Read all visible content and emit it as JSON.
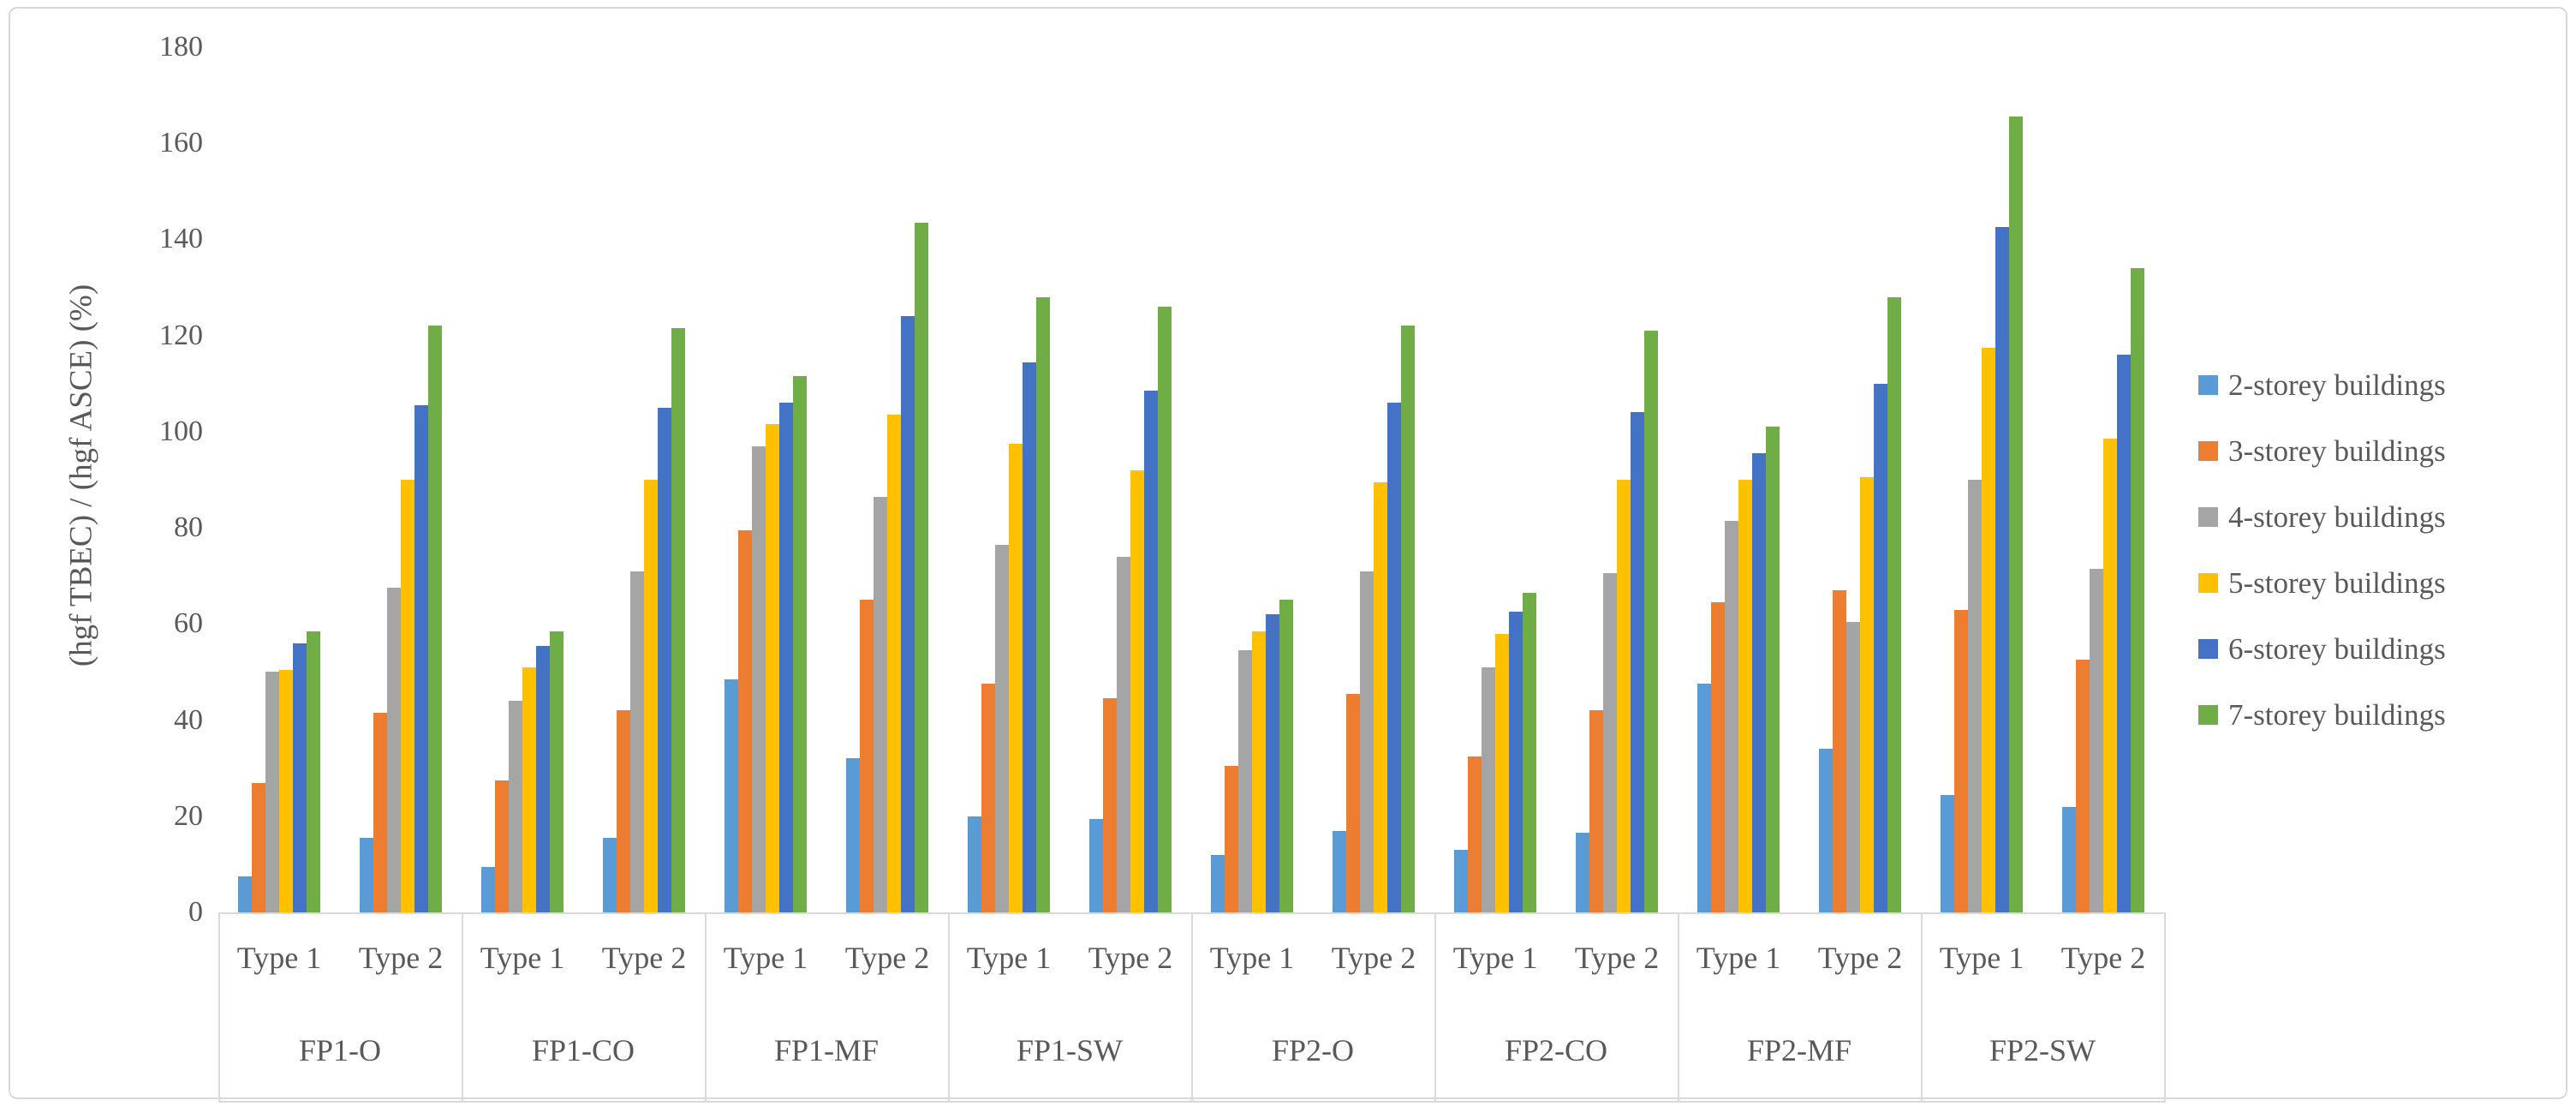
{
  "chart_data": {
    "type": "bar",
    "title": "",
    "ylabel": "(hgf TBEC) / (hgf ASCE) (%)",
    "xlabel": "",
    "ylim": [
      0,
      180
    ],
    "yticks": [
      0,
      20,
      40,
      60,
      80,
      100,
      120,
      140,
      160,
      180
    ],
    "grid": false,
    "legend_position": "right",
    "groups": [
      "FP1-O",
      "FP1-CO",
      "FP1-MF",
      "FP1-SW",
      "FP2-O",
      "FP2-CO",
      "FP2-MF",
      "FP2-SW"
    ],
    "subgroups": [
      "Type 1",
      "Type 2"
    ],
    "series": [
      {
        "name": "2-storey buildings",
        "color": "#5B9BD5",
        "values": [
          [
            7.5,
            15.5
          ],
          [
            9.5,
            15.5
          ],
          [
            48.5,
            32
          ],
          [
            20,
            19.5
          ],
          [
            12,
            17
          ],
          [
            13,
            16.5
          ],
          [
            47.5,
            34
          ],
          [
            24.5,
            22
          ]
        ]
      },
      {
        "name": "3-storey buildings",
        "color": "#ED7D31",
        "values": [
          [
            27,
            41.5
          ],
          [
            27.5,
            42
          ],
          [
            79.5,
            65
          ],
          [
            47.5,
            44.5
          ],
          [
            30.5,
            45.5
          ],
          [
            32.5,
            42
          ],
          [
            64.5,
            67
          ],
          [
            63,
            52.5
          ]
        ]
      },
      {
        "name": "4-storey buildings",
        "color": "#A5A5A5",
        "values": [
          [
            50,
            67.5
          ],
          [
            44,
            71
          ],
          [
            97,
            86.5
          ],
          [
            76.5,
            74
          ],
          [
            54.5,
            71
          ],
          [
            51,
            70.5
          ],
          [
            81.5,
            60.5
          ],
          [
            90,
            71.5
          ]
        ]
      },
      {
        "name": "5-storey buildings",
        "color": "#FFC000",
        "values": [
          [
            50.5,
            90
          ],
          [
            51,
            90
          ],
          [
            101.5,
            103.5
          ],
          [
            97.5,
            92
          ],
          [
            58.5,
            89.5
          ],
          [
            58,
            90
          ],
          [
            90,
            90.5
          ],
          [
            117.5,
            98.5
          ]
        ]
      },
      {
        "name": "6-storey buildings",
        "color": "#4472C4",
        "values": [
          [
            56,
            105.5
          ],
          [
            55.5,
            105
          ],
          [
            106,
            124
          ],
          [
            114.5,
            108.5
          ],
          [
            62,
            106
          ],
          [
            62.5,
            104
          ],
          [
            95.5,
            110
          ],
          [
            142.5,
            116
          ]
        ]
      },
      {
        "name": "7-storey buildings",
        "color": "#70AD47",
        "values": [
          [
            58.5,
            122
          ],
          [
            58.5,
            121.5
          ],
          [
            111.5,
            143.5
          ],
          [
            128,
            126
          ],
          [
            65,
            122
          ],
          [
            66.5,
            121
          ],
          [
            101,
            128
          ],
          [
            165.5,
            134
          ]
        ]
      }
    ]
  }
}
